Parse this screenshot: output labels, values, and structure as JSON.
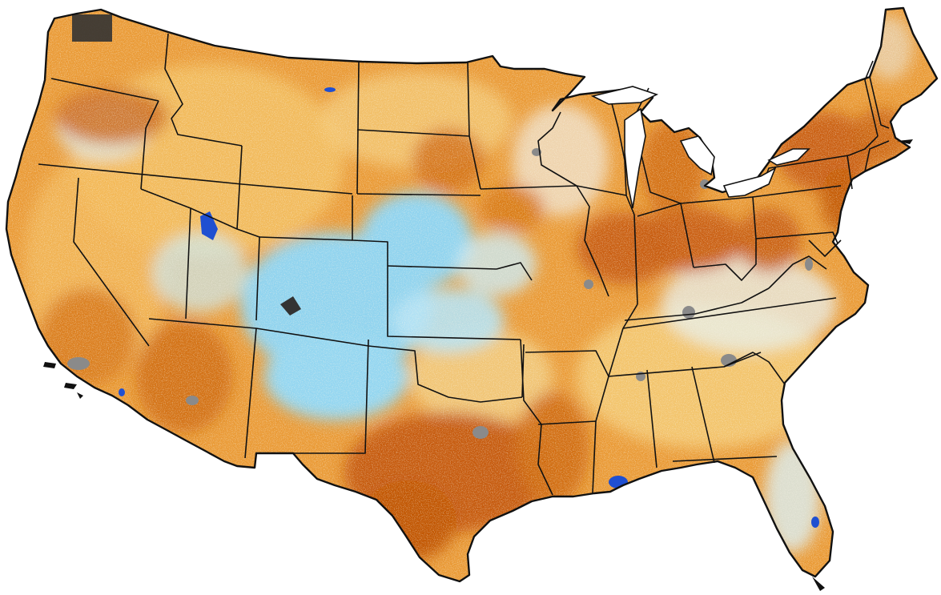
{
  "map": {
    "region": "contiguous-united-states",
    "layer": "raster-anomaly",
    "has_title": false,
    "has_legend": false,
    "state_boundaries": true,
    "colors": {
      "background": "#ffffff",
      "boundary": "#111111",
      "strong_dry": "#b84a00",
      "dry": "#d9760f",
      "moderate_dry": "#eea23a",
      "slight_dry": "#f7d583",
      "near_normal": "#fbf6ee",
      "slight_wet": "#d4eff8",
      "wet": "#95d6f0",
      "strong_wet": "#5ac0e8",
      "water": "#1f4fd1",
      "no_data": "#8a8a8a",
      "nodata_dark": "#333333"
    }
  }
}
